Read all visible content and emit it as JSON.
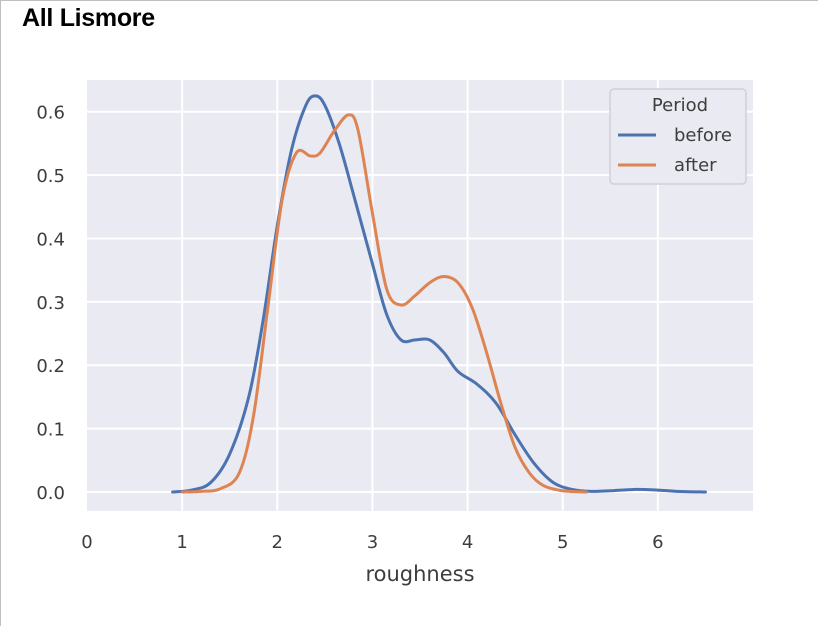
{
  "page_title": "All Lismore",
  "chart_data": {
    "type": "line",
    "title": "",
    "xlabel": "roughness",
    "ylabel": "",
    "xlim": [
      0,
      7
    ],
    "ylim": [
      -0.03,
      0.65
    ],
    "x_ticks": [
      0,
      1,
      2,
      3,
      4,
      5,
      6
    ],
    "y_ticks": [
      0.0,
      0.1,
      0.2,
      0.3,
      0.4,
      0.5,
      0.6
    ],
    "y_tick_labels": [
      "0.0",
      "0.1",
      "0.2",
      "0.3",
      "0.4",
      "0.5",
      "0.6"
    ],
    "grid": true,
    "background": "#eaeaf2",
    "legend": {
      "title": "Period",
      "placement": "top-right"
    },
    "series": [
      {
        "name": "before",
        "color": "#4c72b0",
        "points": [
          [
            0.9,
            0.0
          ],
          [
            1.1,
            0.003
          ],
          [
            1.3,
            0.015
          ],
          [
            1.5,
            0.06
          ],
          [
            1.7,
            0.15
          ],
          [
            1.85,
            0.27
          ],
          [
            2.0,
            0.42
          ],
          [
            2.15,
            0.54
          ],
          [
            2.3,
            0.61
          ],
          [
            2.4,
            0.625
          ],
          [
            2.5,
            0.61
          ],
          [
            2.65,
            0.55
          ],
          [
            2.8,
            0.47
          ],
          [
            3.0,
            0.36
          ],
          [
            3.15,
            0.28
          ],
          [
            3.3,
            0.24
          ],
          [
            3.45,
            0.24
          ],
          [
            3.6,
            0.24
          ],
          [
            3.75,
            0.22
          ],
          [
            3.9,
            0.19
          ],
          [
            4.1,
            0.17
          ],
          [
            4.3,
            0.14
          ],
          [
            4.5,
            0.09
          ],
          [
            4.7,
            0.045
          ],
          [
            4.9,
            0.015
          ],
          [
            5.1,
            0.004
          ],
          [
            5.3,
            0.001
          ],
          [
            5.5,
            0.002
          ],
          [
            5.75,
            0.004
          ],
          [
            6.0,
            0.003
          ],
          [
            6.2,
            0.001
          ],
          [
            6.5,
            0.0
          ]
        ]
      },
      {
        "name": "after",
        "color": "#dd8452",
        "points": [
          [
            1.0,
            0.0
          ],
          [
            1.2,
            0.001
          ],
          [
            1.4,
            0.005
          ],
          [
            1.6,
            0.03
          ],
          [
            1.75,
            0.12
          ],
          [
            1.9,
            0.29
          ],
          [
            2.05,
            0.46
          ],
          [
            2.2,
            0.535
          ],
          [
            2.35,
            0.53
          ],
          [
            2.45,
            0.535
          ],
          [
            2.6,
            0.57
          ],
          [
            2.75,
            0.595
          ],
          [
            2.85,
            0.57
          ],
          [
            3.0,
            0.44
          ],
          [
            3.15,
            0.32
          ],
          [
            3.3,
            0.295
          ],
          [
            3.45,
            0.31
          ],
          [
            3.6,
            0.33
          ],
          [
            3.75,
            0.34
          ],
          [
            3.9,
            0.33
          ],
          [
            4.05,
            0.29
          ],
          [
            4.2,
            0.22
          ],
          [
            4.35,
            0.14
          ],
          [
            4.5,
            0.07
          ],
          [
            4.65,
            0.03
          ],
          [
            4.8,
            0.01
          ],
          [
            5.0,
            0.002
          ],
          [
            5.25,
            0.0
          ]
        ]
      }
    ]
  }
}
